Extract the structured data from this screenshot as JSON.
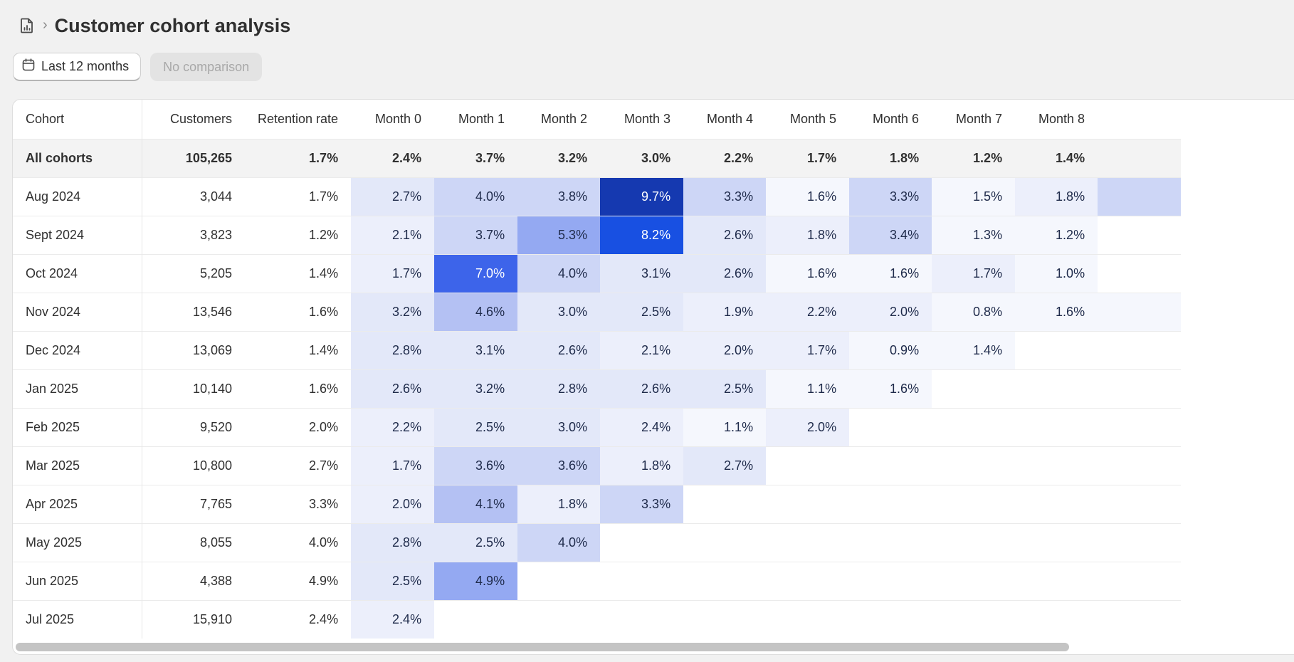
{
  "header": {
    "icon": "report-document-icon",
    "separator": "›",
    "title": "Customer cohort analysis"
  },
  "filters": {
    "date_label": "Last 12 months",
    "date_icon": "calendar-icon",
    "comparison_label": "No comparison"
  },
  "table": {
    "columns": [
      "Cohort",
      "Customers",
      "Retention rate",
      "Month 0",
      "Month 1",
      "Month 2",
      "Month 3",
      "Month 4",
      "Month 5",
      "Month 6",
      "Month 7",
      "Month 8"
    ],
    "summary": {
      "cohort": "All cohorts",
      "customers": "105,265",
      "retention": "1.7%",
      "months": [
        "2.4%",
        "3.7%",
        "3.2%",
        "3.0%",
        "2.2%",
        "1.7%",
        "1.8%",
        "1.2%",
        "1.4%"
      ]
    },
    "rows": [
      {
        "cohort": "Aug 2024",
        "customers": "3,044",
        "retention": "1.7%",
        "months": [
          "2.7%",
          "4.0%",
          "3.8%",
          "9.7%",
          "3.3%",
          "1.6%",
          "3.3%",
          "1.5%",
          "1.8%"
        ]
      },
      {
        "cohort": "Sept 2024",
        "customers": "3,823",
        "retention": "1.2%",
        "months": [
          "2.1%",
          "3.7%",
          "5.3%",
          "8.2%",
          "2.6%",
          "1.8%",
          "3.4%",
          "1.3%",
          "1.2%"
        ]
      },
      {
        "cohort": "Oct 2024",
        "customers": "5,205",
        "retention": "1.4%",
        "months": [
          "1.7%",
          "7.0%",
          "4.0%",
          "3.1%",
          "2.6%",
          "1.6%",
          "1.6%",
          "1.7%",
          "1.0%"
        ]
      },
      {
        "cohort": "Nov 2024",
        "customers": "13,546",
        "retention": "1.6%",
        "months": [
          "3.2%",
          "4.6%",
          "3.0%",
          "2.5%",
          "1.9%",
          "2.2%",
          "2.0%",
          "0.8%",
          "1.6%"
        ]
      },
      {
        "cohort": "Dec 2024",
        "customers": "13,069",
        "retention": "1.4%",
        "months": [
          "2.8%",
          "3.1%",
          "2.6%",
          "2.1%",
          "2.0%",
          "1.7%",
          "0.9%",
          "1.4%"
        ]
      },
      {
        "cohort": "Jan 2025",
        "customers": "10,140",
        "retention": "1.6%",
        "months": [
          "2.6%",
          "3.2%",
          "2.8%",
          "2.6%",
          "2.5%",
          "1.1%",
          "1.6%"
        ]
      },
      {
        "cohort": "Feb 2025",
        "customers": "9,520",
        "retention": "2.0%",
        "months": [
          "2.2%",
          "2.5%",
          "3.0%",
          "2.4%",
          "1.1%",
          "2.0%"
        ]
      },
      {
        "cohort": "Mar 2025",
        "customers": "10,800",
        "retention": "2.7%",
        "months": [
          "1.7%",
          "3.6%",
          "3.6%",
          "1.8%",
          "2.7%"
        ]
      },
      {
        "cohort": "Apr 2025",
        "customers": "7,765",
        "retention": "3.3%",
        "months": [
          "2.0%",
          "4.1%",
          "1.8%",
          "3.3%"
        ]
      },
      {
        "cohort": "May 2025",
        "customers": "8,055",
        "retention": "4.0%",
        "months": [
          "2.8%",
          "2.5%",
          "4.0%"
        ]
      },
      {
        "cohort": "Jun 2025",
        "customers": "4,388",
        "retention": "4.9%",
        "months": [
          "2.5%",
          "4.9%"
        ]
      },
      {
        "cohort": "Jul 2025",
        "customers": "15,910",
        "retention": "2.4%",
        "months": [
          "2.4%"
        ]
      }
    ],
    "heat_colors": {
      "very_light": "#f5f7fd",
      "light": "#eceffb",
      "pale": "#e3e8f9",
      "soft": "#cdd6f6",
      "medium": "#b4c1f3",
      "mid": "#94a9f2",
      "strong": "#3d64ea",
      "intense": "#1850e2",
      "deepest": "#1539b0"
    }
  }
}
